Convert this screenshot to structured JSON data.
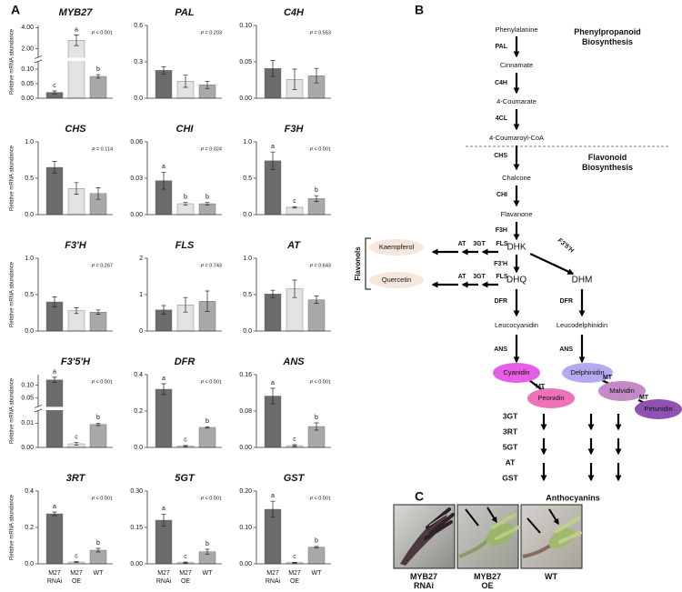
{
  "panel_labels": [
    "A",
    "B",
    "C"
  ],
  "bar_colors": [
    "#6b6b6b",
    "#e3e3e3",
    "#a9a9a9"
  ],
  "chart_data": [
    {
      "type": "bar",
      "title": "MYB27",
      "annotation": "p < 0.001",
      "ylabel": "Relative mRNA abundance",
      "categories": [
        null,
        null,
        null
      ],
      "values": [
        0.02,
        2.8,
        0.075
      ],
      "errors": [
        0.005,
        0.5,
        0.006
      ],
      "letters": [
        "c",
        "a",
        "b"
      ],
      "ylim": [
        0,
        4.2
      ],
      "axis_break": [
        0.125,
        1.25
      ],
      "yticks": [
        {
          "value": 0,
          "label": "0.00"
        },
        {
          "value": 0.05,
          "label": "0.05"
        },
        {
          "value": 0.1,
          "label": "0.10"
        },
        {
          "value": 2,
          "label": "2.00"
        },
        {
          "value": 4,
          "label": "4.00"
        }
      ]
    },
    {
      "type": "bar",
      "title": "PAL",
      "annotation": "p = 0.203",
      "categories": [
        null,
        null,
        null
      ],
      "values": [
        0.23,
        0.14,
        0.11
      ],
      "errors": [
        0.03,
        0.05,
        0.03
      ],
      "ylim": [
        0,
        0.6
      ],
      "yticks": [
        {
          "value": 0,
          "label": "0.0"
        },
        {
          "value": 0.3,
          "label": "0.3"
        },
        {
          "value": 0.6,
          "label": "0.6"
        }
      ]
    },
    {
      "type": "bar",
      "title": "C4H",
      "annotation": "p = 0.553",
      "categories": [
        null,
        null,
        null
      ],
      "values": [
        0.041,
        0.026,
        0.031
      ],
      "errors": [
        0.011,
        0.014,
        0.01
      ],
      "ylim": [
        0,
        0.1
      ],
      "yticks": [
        {
          "value": 0,
          "label": "0.00"
        },
        {
          "value": 0.05,
          "label": "0.05"
        },
        {
          "value": 0.1,
          "label": "0.10"
        }
      ]
    },
    {
      "type": "bar",
      "title": "CHS",
      "annotation": "p = 0.114",
      "ylabel": "Relative mRNA abundance",
      "categories": [
        null,
        null,
        null
      ],
      "values": [
        0.65,
        0.36,
        0.29
      ],
      "errors": [
        0.08,
        0.08,
        0.08
      ],
      "ylim": [
        0,
        1
      ],
      "yticks": [
        {
          "value": 0,
          "label": "0.0"
        },
        {
          "value": 0.5,
          "label": "0.5"
        },
        {
          "value": 1,
          "label": "1.0"
        }
      ]
    },
    {
      "type": "bar",
      "title": "CHI",
      "annotation": "p = 0.024",
      "categories": [
        null,
        null,
        null
      ],
      "values": [
        0.028,
        0.009,
        0.009
      ],
      "errors": [
        0.007,
        0.001,
        0.001
      ],
      "letters": [
        "a",
        "b",
        "b"
      ],
      "ylim": [
        0,
        0.06
      ],
      "yticks": [
        {
          "value": 0,
          "label": "0.00"
        },
        {
          "value": 0.03,
          "label": "0.03"
        },
        {
          "value": 0.06,
          "label": "0.06"
        }
      ]
    },
    {
      "type": "bar",
      "title": "F3H",
      "annotation": "p < 0.001",
      "categories": [
        null,
        null,
        null
      ],
      "values": [
        0.74,
        0.1,
        0.22
      ],
      "errors": [
        0.12,
        0.01,
        0.04
      ],
      "letters": [
        "a",
        "c",
        "b"
      ],
      "ylim": [
        0,
        1
      ],
      "yticks": [
        {
          "value": 0,
          "label": "0.0"
        },
        {
          "value": 0.5,
          "label": "0.5"
        },
        {
          "value": 1,
          "label": "1.0"
        }
      ]
    },
    {
      "type": "bar",
      "title": "F3'H",
      "annotation": "p = 0.267",
      "ylabel": "Relative mRNA abundance",
      "categories": [
        null,
        null,
        null
      ],
      "values": [
        0.4,
        0.28,
        0.26
      ],
      "errors": [
        0.07,
        0.04,
        0.03
      ],
      "ylim": [
        0,
        1
      ],
      "yticks": [
        {
          "value": 0,
          "label": "0.0"
        },
        {
          "value": 0.5,
          "label": "0.5"
        },
        {
          "value": 1,
          "label": "1.0"
        }
      ]
    },
    {
      "type": "bar",
      "title": "FLS",
      "annotation": "p = 0.743",
      "categories": [
        null,
        null,
        null
      ],
      "values": [
        0.58,
        0.72,
        0.82
      ],
      "errors": [
        0.12,
        0.2,
        0.28
      ],
      "ylim": [
        0,
        2
      ],
      "yticks": [
        0,
        1,
        2
      ]
    },
    {
      "type": "bar",
      "title": "AT",
      "annotation": "p = 0.643",
      "categories": [
        null,
        null,
        null
      ],
      "values": [
        0.51,
        0.58,
        0.43
      ],
      "errors": [
        0.05,
        0.12,
        0.05
      ],
      "ylim": [
        0,
        1
      ],
      "yticks": [
        {
          "value": 0,
          "label": "0.0"
        },
        {
          "value": 0.5,
          "label": "0.5"
        },
        {
          "value": 1,
          "label": "1.0"
        }
      ]
    },
    {
      "type": "bar",
      "title": "F3'5'H",
      "annotation": "p < 0.001",
      "ylabel": "Relative mRNA abundance",
      "categories": [
        null,
        null,
        null
      ],
      "values": [
        0.12,
        0.0015,
        0.0095
      ],
      "errors": [
        0.01,
        0.0005,
        0.0005
      ],
      "letters": [
        "a",
        "c",
        "b"
      ],
      "ylim": [
        0,
        0.14
      ],
      "axis_break": [
        0.015,
        0.02
      ],
      "yticks": [
        {
          "value": 0,
          "label": "0.00"
        },
        {
          "value": 0.01,
          "label": "0.01"
        },
        {
          "value": 0.05,
          "label": "0.05"
        },
        {
          "value": 0.1,
          "label": "0.10"
        }
      ]
    },
    {
      "type": "bar",
      "title": "DFR",
      "annotation": "p < 0.001",
      "categories": [
        null,
        null,
        null
      ],
      "values": [
        0.32,
        0.008,
        0.11
      ],
      "errors": [
        0.03,
        0.003,
        0.004
      ],
      "letters": [
        "a",
        "c",
        "b"
      ],
      "ylim": [
        0,
        0.4
      ],
      "yticks": [
        {
          "value": 0,
          "label": "0.0"
        },
        {
          "value": 0.2,
          "label": "0.2"
        },
        {
          "value": 0.4,
          "label": "0.4"
        }
      ]
    },
    {
      "type": "bar",
      "title": "ANS",
      "annotation": "p < 0.001",
      "categories": [
        null,
        null,
        null
      ],
      "values": [
        0.113,
        0.004,
        0.046
      ],
      "errors": [
        0.017,
        0.002,
        0.008
      ],
      "letters": [
        "a",
        "c",
        "b"
      ],
      "ylim": [
        0,
        0.16
      ],
      "yticks": [
        {
          "value": 0,
          "label": "0.00"
        },
        {
          "value": 0.08,
          "label": "0.08"
        },
        {
          "value": 0.16,
          "label": "0.16"
        }
      ]
    },
    {
      "type": "bar",
      "title": "3RT",
      "annotation": "p < 0.001",
      "ylabel": "Relative mRNA abundance",
      "categories": [
        "M27 RNAi",
        "M27 OE",
        "WT"
      ],
      "values": [
        0.275,
        0.01,
        0.075
      ],
      "errors": [
        0.01,
        0.002,
        0.01
      ],
      "letters": [
        "a",
        "c",
        "b"
      ],
      "ylim": [
        0,
        0.4
      ],
      "yticks": [
        {
          "value": 0,
          "label": "0.0"
        },
        {
          "value": 0.2,
          "label": "0.2"
        },
        {
          "value": 0.4,
          "label": "0.4"
        }
      ]
    },
    {
      "type": "bar",
      "title": "5GT",
      "annotation": "p < 0.001",
      "categories": [
        "M27 RNAi",
        "M27 OE",
        "WT"
      ],
      "values": [
        0.18,
        0.005,
        0.05
      ],
      "errors": [
        0.025,
        0.002,
        0.01
      ],
      "letters": [
        "a",
        "c",
        "b"
      ],
      "ylim": [
        0,
        0.3
      ],
      "yticks": [
        {
          "value": 0,
          "label": "0.00"
        },
        {
          "value": 0.15,
          "label": "0.15"
        },
        {
          "value": 0.3,
          "label": "0.30"
        }
      ]
    },
    {
      "type": "bar",
      "title": "GST",
      "annotation": "p < 0.001",
      "categories": [
        "M27 RNAi",
        "M27 OE",
        "WT"
      ],
      "values": [
        0.15,
        0.003,
        0.046
      ],
      "errors": [
        0.022,
        0.001,
        0.002
      ],
      "letters": [
        "a",
        "c",
        "b"
      ],
      "ylim": [
        0,
        0.2
      ],
      "yticks": [
        {
          "value": 0,
          "label": "0.00"
        },
        {
          "value": 0.1,
          "label": "0.10"
        },
        {
          "value": 0.2,
          "label": "0.20"
        }
      ]
    }
  ],
  "pathway": {
    "headings": [
      "Phenylpropanoid Biosynthesis",
      "Flavonoid Biosynthesis",
      "Flavonols",
      "Anthocyanins"
    ],
    "compounds": [
      "Phenylalanine",
      "Cinnamate",
      "4-Coumarate",
      "4-Coumaroyl-CoA",
      "Chalcone",
      "Flavanone",
      "DHK",
      "DHQ",
      "DHM",
      "Leucocyanidin",
      "Leucodelphinidin",
      "Kaempferol",
      "Quercetin",
      "Cyanidin",
      "Delphinidin",
      "Peonidin",
      "Malvidin",
      "Petunidin"
    ],
    "enzymes": [
      {
        "label": "PAL",
        "color": "#000000"
      },
      {
        "label": "C4H",
        "color": "#000000"
      },
      {
        "label": "4CL",
        "color": "#000000"
      },
      {
        "label": "CHS",
        "color": "#000000"
      },
      {
        "label": "CHI",
        "color": "#000000"
      },
      {
        "label": "F3H",
        "color": "#d42020"
      },
      {
        "label": "F3'H",
        "color": "#000000"
      },
      {
        "label": "F3'5'H",
        "color": "#d42020"
      },
      {
        "label": "DFR",
        "color": "#d42020"
      },
      {
        "label": "DFR",
        "color": "#d42020"
      },
      {
        "label": "ANS",
        "color": "#d42020"
      },
      {
        "label": "ANS",
        "color": "#d42020"
      },
      {
        "label": "AT",
        "color": "#000000"
      },
      {
        "label": "3GT",
        "color": "#000000"
      },
      {
        "label": "FLS",
        "color": "#000000"
      },
      {
        "label": "AT",
        "color": "#000000"
      },
      {
        "label": "3GT",
        "color": "#000000"
      },
      {
        "label": "FLS",
        "color": "#000000"
      },
      {
        "label": "MT",
        "color": "#000000"
      },
      {
        "label": "MT",
        "color": "#000000"
      },
      {
        "label": "MT",
        "color": "#000000"
      },
      {
        "label": "3GT",
        "color": "#000000"
      },
      {
        "label": "3RT",
        "color": "#d42020"
      },
      {
        "label": "5GT",
        "color": "#d42020"
      },
      {
        "label": "AT",
        "color": "#000000"
      },
      {
        "label": "GST",
        "color": "#d42020"
      }
    ]
  },
  "photos": {
    "labels": [
      "MYB27 RNAi",
      "MYB27 OE",
      "WT"
    ]
  }
}
